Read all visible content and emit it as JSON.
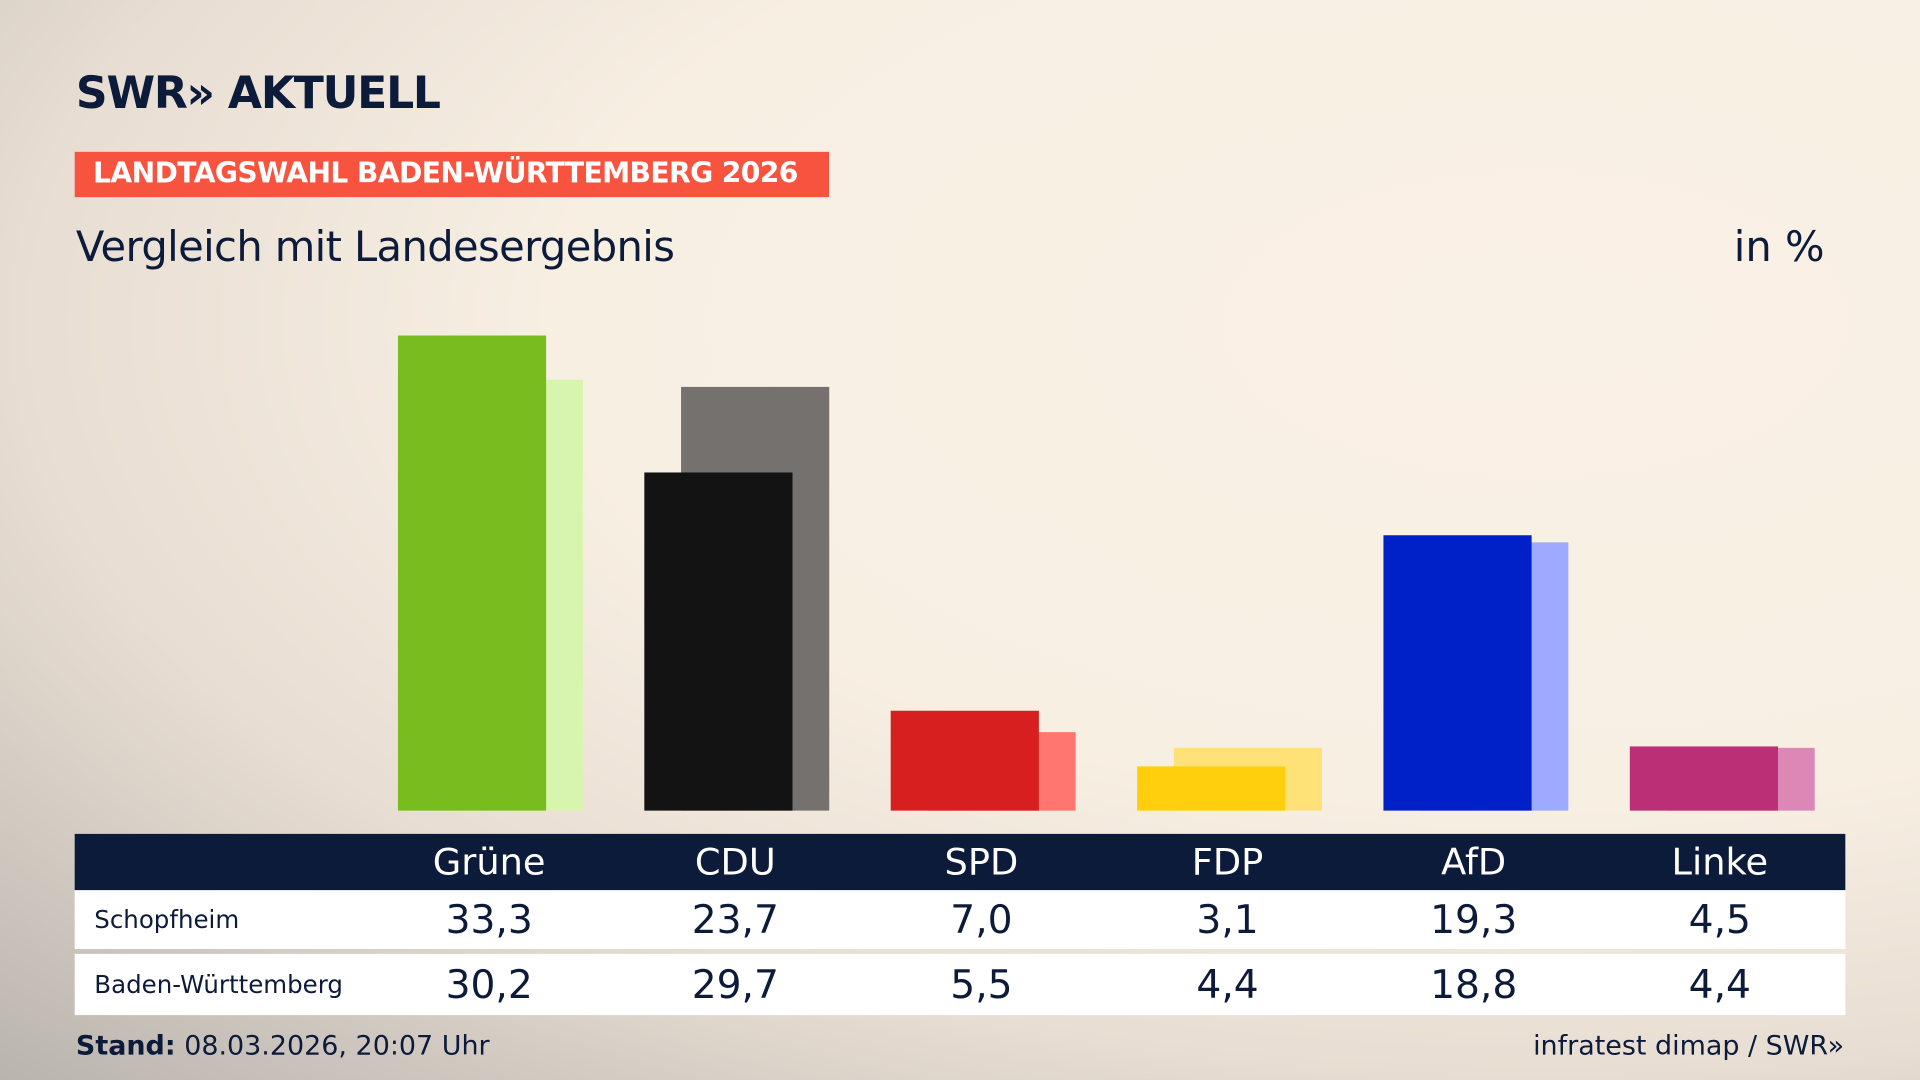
{
  "header": {
    "logo": "SWR» AKTUELL",
    "tag": "LANDTAGSWAHL BADEN-WÜRTTEMBERG 2026",
    "subtitle": "Vergleich mit Landesergebnis",
    "unit": "in %"
  },
  "chart_data": {
    "type": "bar",
    "categories": [
      "Grüne",
      "CDU",
      "SPD",
      "FDP",
      "AfD",
      "Linke"
    ],
    "series": [
      {
        "name": "Schopfheim",
        "values": [
          33.3,
          23.7,
          7.0,
          3.1,
          19.3,
          4.5
        ]
      },
      {
        "name": "Baden-Württemberg",
        "values": [
          30.2,
          29.7,
          5.5,
          4.4,
          18.8,
          4.4
        ]
      }
    ],
    "value_labels": [
      [
        "33,3",
        "23,7",
        "7,0",
        "3,1",
        "19,3",
        "4,5"
      ],
      [
        "30,2",
        "29,7",
        "5,5",
        "4,4",
        "18,8",
        "4,4"
      ]
    ],
    "colors": [
      "#78bd1d",
      "#131313",
      "#d81f1f",
      "#ffcf0e",
      "#0021c8",
      "#bb2f76"
    ],
    "colors_light": [
      "#d8f5ad",
      "#74716f",
      "#ff7670",
      "#ffe277",
      "#9daaff",
      "#dc88b6"
    ],
    "ylim": [
      0,
      33.3
    ]
  },
  "footer": {
    "stand_label": "Stand:",
    "stand_value": "08.03.2026, 20:07 Uhr",
    "source": "infratest dimap / SWR»"
  }
}
